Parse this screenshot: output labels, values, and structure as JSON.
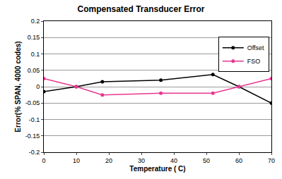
{
  "chart_data": {
    "type": "line",
    "title": "Compensated Transducer Error",
    "x_label": "Temperature ( C)",
    "y_label": "Error(% SPAN, 4000 codes)",
    "x": [
      0,
      10,
      18,
      36,
      52,
      60,
      70
    ],
    "series": [
      {
        "name": "Offset",
        "color": "#000000",
        "marker": "circle",
        "values": [
          -0.015,
          0,
          0.015,
          0.02,
          0.037,
          0,
          -0.05
        ]
      },
      {
        "name": "FSO",
        "color": "#e8368f",
        "marker": "circle",
        "values": [
          0.025,
          0,
          -0.025,
          -0.02,
          -0.02,
          0,
          0.025
        ]
      }
    ],
    "xlim": [
      0,
      70
    ],
    "xticks": [
      0,
      10,
      20,
      30,
      40,
      50,
      60,
      70
    ],
    "ylim": [
      -0.2,
      0.2
    ],
    "yticks": [
      -0.2,
      -0.15,
      -0.1,
      -0.05,
      0,
      0.05,
      0.1,
      0.15,
      0.2
    ],
    "grid": true,
    "legend": "upper right"
  }
}
